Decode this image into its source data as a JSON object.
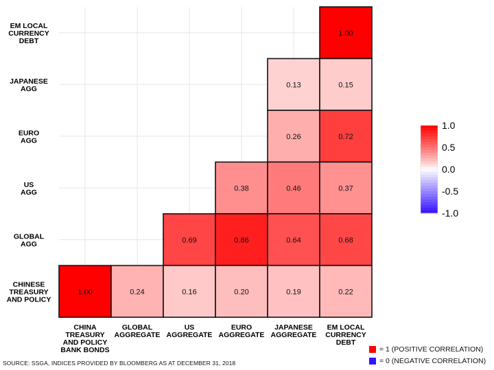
{
  "chart_data": {
    "type": "heatmap",
    "rows": [
      [
        "EM LOCAL",
        "CURRENCY",
        "DEBT"
      ],
      [
        "JAPANESE",
        "AGG"
      ],
      [
        "EURO",
        "AGG"
      ],
      [
        "US",
        "AGG"
      ],
      [
        "GLOBAL",
        "AGG"
      ],
      [
        "CHINESE",
        "TREASURY",
        "AND POLICY"
      ]
    ],
    "columns": [
      [
        "CHINA",
        "TREASURY",
        "AND POLICY",
        "BANK BONDS"
      ],
      [
        "GLOBAL",
        "AGGREGATE"
      ],
      [
        "US",
        "AGGREGATE"
      ],
      [
        "EURO",
        "AGGREGATE"
      ],
      [
        "JAPANESE",
        "AGGREGATE"
      ],
      [
        "EM LOCAL",
        "CURRENCY",
        "DEBT"
      ]
    ],
    "values": [
      [
        null,
        null,
        null,
        null,
        null,
        1.0
      ],
      [
        null,
        null,
        null,
        null,
        0.13,
        0.15
      ],
      [
        null,
        null,
        null,
        null,
        0.26,
        0.72
      ],
      [
        null,
        null,
        null,
        0.38,
        0.46,
        0.37
      ],
      [
        null,
        null,
        0.69,
        0.86,
        0.64,
        0.68
      ],
      [
        1.0,
        0.24,
        0.16,
        0.2,
        0.19,
        0.22
      ]
    ],
    "value_labels": [
      [
        null,
        null,
        null,
        null,
        null,
        "1.00"
      ],
      [
        null,
        null,
        null,
        null,
        "0.13",
        "0.15"
      ],
      [
        null,
        null,
        null,
        null,
        "0.26",
        "0.72"
      ],
      [
        null,
        null,
        null,
        "0.38",
        "0.46",
        "0.37"
      ],
      [
        null,
        null,
        "0.69",
        "0.86",
        "0.64",
        "0.68"
      ],
      [
        "1.00",
        "0.24",
        "0.16",
        "0.20",
        "0.19",
        "0.22"
      ]
    ],
    "colorbar": {
      "range": [
        -1.0,
        1.0
      ],
      "ticks": [
        "1.0",
        "0.5",
        "0.0",
        "-0.5",
        "-1.0"
      ],
      "tick_values": [
        1.0,
        0.5,
        0.0,
        -0.5,
        -1.0
      ],
      "colors": {
        "positive": "#ff0000",
        "neutral": "#ffffff",
        "negative": "#3311ff"
      }
    },
    "grid": true
  },
  "legend": {
    "positive": {
      "label": "= 1 (POSITIVE CORRELATION)",
      "color": "#ff0000"
    },
    "negative": {
      "label": "= 0 (NEGATIVE CORRELATION)",
      "color": "#3311ff"
    }
  },
  "source": "SOURCE: SSGA, INDICES PROVIDED BY BLOOMBERG AS AT DECEMBER 31, 2018"
}
